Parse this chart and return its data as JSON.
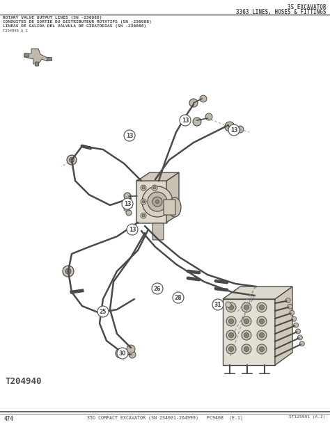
{
  "bg_color": "#ffffff",
  "line_color": "#4a4a4a",
  "light_line": "#7a7a7a",
  "dashed_color": "#888888",
  "fill_light": "#d8d0c0",
  "fill_mid": "#c0b8a8",
  "fill_dark": "#908880",
  "title_right_line1": "35 EXCAVATOR",
  "title_right_line2": "3363 LINES, HOSES & FITTINGS",
  "header_line1": "ROTARY VALVE OUTPUT LINES (SN -236088)",
  "header_line2": "CONDUITES DE SORTIE DU DISTRIBUTEUR ROTATIFS (SN -236088)",
  "header_line3": "LINEAS DE SALIDA DEL VALVULA DE GIRATORIAS (SN -236088)",
  "sub_label": "T204940 A.1",
  "bottom_left": "474",
  "bottom_center": "35D COMPACT EXCAVATOR (SN 234001-264999)   PC9408  (E.1)",
  "bottom_right": "ST125901 (A.2)",
  "part_label": "T204940"
}
